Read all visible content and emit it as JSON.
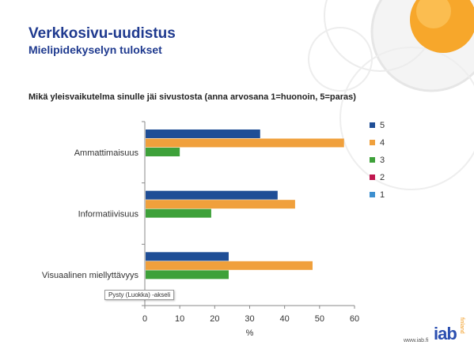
{
  "header": {
    "title": "Verkkosivu-uudistus",
    "subtitle": "Mielipidekyselyn tulokset"
  },
  "question": "Mikä yleisvaikutelma sinulle jäi sivustosta (anna arvosana 1=huonoin, 5=paras)",
  "tooltip": "Pysty (Luokka)  -akseli",
  "footer": {
    "url": "www.iab.fi",
    "logo": "iab",
    "logo_side": "finland"
  },
  "colors": {
    "5": "#1f4e96",
    "4": "#f0a03c",
    "3": "#3ea13a",
    "2": "#c0174f",
    "1": "#3d8fcf",
    "title": "#1f3a8f"
  },
  "chart_data": {
    "type": "bar",
    "orientation": "horizontal",
    "categories": [
      "Ammattimaisuus",
      "Informatiivisuus",
      "Visuaalinen miellyttävyys"
    ],
    "series": [
      {
        "name": "5",
        "values": [
          33,
          38,
          24
        ]
      },
      {
        "name": "4",
        "values": [
          57,
          43,
          48
        ]
      },
      {
        "name": "3",
        "values": [
          10,
          19,
          24
        ]
      },
      {
        "name": "2",
        "values": [
          0,
          0,
          0
        ]
      },
      {
        "name": "1",
        "values": [
          0,
          0,
          0
        ]
      }
    ],
    "xlabel": "%",
    "xlim": [
      0,
      60
    ],
    "xticks": [
      "0",
      "10",
      "20",
      "30",
      "40",
      "50",
      "60"
    ],
    "grid": false,
    "legend_position": "right"
  }
}
